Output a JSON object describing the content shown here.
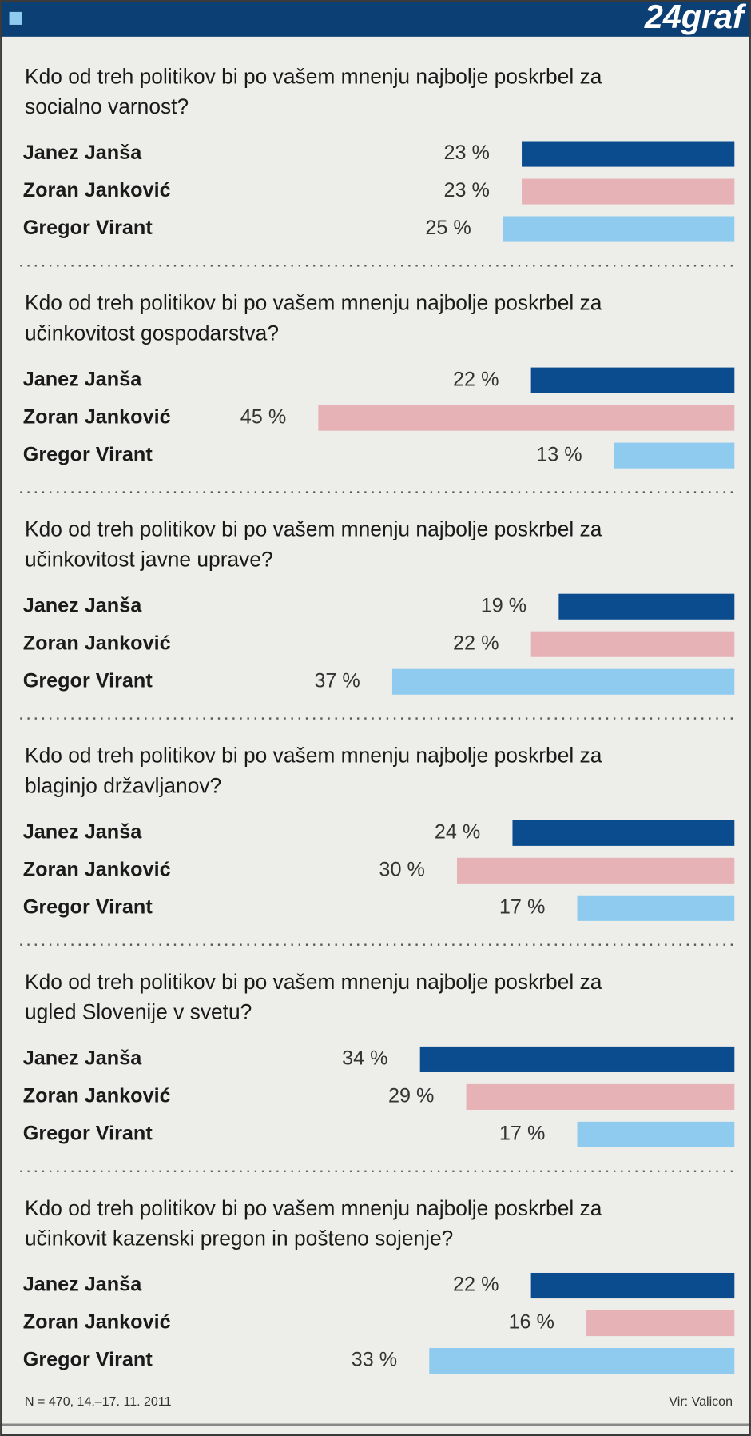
{
  "header": {
    "logo": "24graf"
  },
  "chart_data": [
    {
      "type": "bar",
      "orientation": "horizontal",
      "title": [
        "Kdo od treh politikov bi po vašem mnenju najbolje poskrbel za",
        "socialno varnost?"
      ],
      "categories": [
        "Janez Janša",
        "Zoran Janković",
        "Gregor Virant"
      ],
      "values": [
        23,
        23,
        25
      ],
      "value_labels": [
        "23 %",
        "23 %",
        "25 %"
      ],
      "colors": [
        "#0b4c8e",
        "#e7b2b6",
        "#8fcbee"
      ]
    },
    {
      "type": "bar",
      "orientation": "horizontal",
      "title": [
        "Kdo od treh politikov bi po vašem mnenju najbolje poskrbel za",
        "učinkovitost gospodarstva?"
      ],
      "categories": [
        "Janez Janša",
        "Zoran Janković",
        "Gregor Virant"
      ],
      "values": [
        22,
        45,
        13
      ],
      "value_labels": [
        "22 %",
        "45 %",
        "13 %"
      ],
      "colors": [
        "#0b4c8e",
        "#e7b2b6",
        "#8fcbee"
      ]
    },
    {
      "type": "bar",
      "orientation": "horizontal",
      "title": [
        "Kdo od treh politikov bi po vašem mnenju najbolje poskrbel za",
        "učinkovitost javne uprave?"
      ],
      "categories": [
        "Janez Janša",
        "Zoran Janković",
        "Gregor Virant"
      ],
      "values": [
        19,
        22,
        37
      ],
      "value_labels": [
        "19 %",
        "22 %",
        "37 %"
      ],
      "colors": [
        "#0b4c8e",
        "#e7b2b6",
        "#8fcbee"
      ]
    },
    {
      "type": "bar",
      "orientation": "horizontal",
      "title": [
        "Kdo od treh politikov bi po vašem mnenju najbolje poskrbel za",
        "blaginjo državljanov?"
      ],
      "categories": [
        "Janez Janša",
        "Zoran Janković",
        "Gregor Virant"
      ],
      "values": [
        24,
        30,
        17
      ],
      "value_labels": [
        "24 %",
        "30 %",
        "17 %"
      ],
      "colors": [
        "#0b4c8e",
        "#e7b2b6",
        "#8fcbee"
      ]
    },
    {
      "type": "bar",
      "orientation": "horizontal",
      "title": [
        "Kdo od treh politikov bi po vašem mnenju najbolje poskrbel za",
        "ugled Slovenije v svetu?"
      ],
      "categories": [
        "Janez Janša",
        "Zoran Janković",
        "Gregor Virant"
      ],
      "values": [
        34,
        29,
        17
      ],
      "value_labels": [
        "34 %",
        "29 %",
        "17 %"
      ],
      "colors": [
        "#0b4c8e",
        "#e7b2b6",
        "#8fcbee"
      ]
    },
    {
      "type": "bar",
      "orientation": "horizontal",
      "title": [
        "Kdo od treh politikov bi po vašem mnenju najbolje poskrbel za",
        "učinkovit kazenski pregon in pošteno sojenje?"
      ],
      "categories": [
        "Janez Janša",
        "Zoran Janković",
        "Gregor Virant"
      ],
      "values": [
        22,
        16,
        33
      ],
      "value_labels": [
        "22 %",
        "16 %",
        "33 %"
      ],
      "colors": [
        "#0b4c8e",
        "#e7b2b6",
        "#8fcbee"
      ]
    }
  ],
  "footer": {
    "note": "N = 470, 14.–17. 11. 2011",
    "source": "Vir: Valicon"
  }
}
